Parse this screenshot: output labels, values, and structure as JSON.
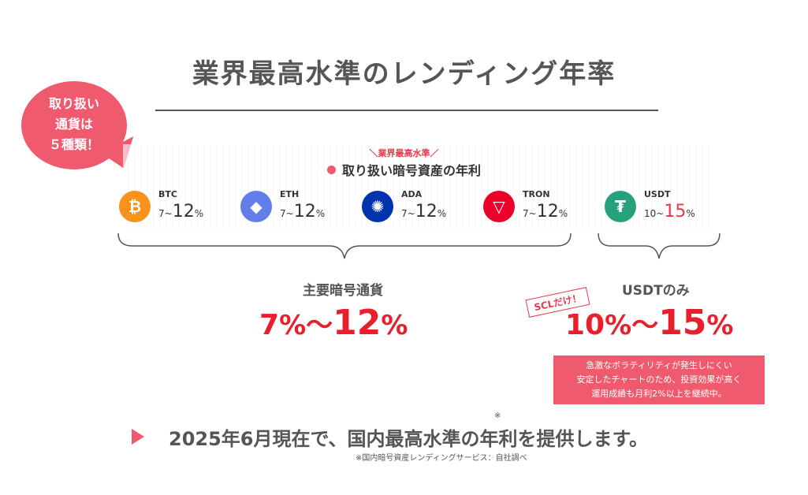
{
  "title": "業界最高水準のレンディング年率",
  "bubble": {
    "text": "取り扱い\n通貨は\n５種類！"
  },
  "kicker": "＼業界最高水準／",
  "subhead": "取り扱い暗号資産の年利",
  "coins": [
    {
      "name": "BTC",
      "prefix": "7~",
      "value": "12",
      "suffix": "%",
      "color": "#f7931a",
      "icon": "bitcoin-icon",
      "glyph": "₿"
    },
    {
      "name": "ETH",
      "prefix": "7~",
      "value": "12",
      "suffix": "%",
      "color": "#627eea",
      "icon": "ethereum-icon",
      "glyph": "◆"
    },
    {
      "name": "ADA",
      "prefix": "7~",
      "value": "12",
      "suffix": "%",
      "color": "#0033ad",
      "icon": "cardano-icon",
      "glyph": "✺"
    },
    {
      "name": "TRON",
      "prefix": "7~",
      "value": "12",
      "suffix": "%",
      "color": "#eb0029",
      "icon": "tron-icon",
      "glyph": "▽"
    },
    {
      "name": "USDT",
      "prefix": "10~",
      "value": "15",
      "suffix": "%",
      "color": "#26a17b",
      "icon": "tether-icon",
      "glyph": "₮"
    }
  ],
  "main_group": {
    "label": "主要暗号通貨",
    "rate_low": "7",
    "pct1": "%",
    "tilde": "〜",
    "rate_high": "12",
    "pct2": "%"
  },
  "usdt_group": {
    "label": "USDTのみ",
    "tag": "SCLだけ！",
    "rate_low": "10",
    "pct1": "%",
    "tilde": "〜",
    "rate_high": "15",
    "pct2": "%",
    "note": [
      "急激なボラティリティが発生しにくい",
      "安定したチャートのため、投資効果が高く",
      "運用成績も月利2%以上を継続中。"
    ]
  },
  "statement": "2025年6月現在で、国内最高水準の年利を提供します。",
  "asterisk": "※",
  "footnote": "※国内暗号資産レンディングサービス：自社調べ",
  "accent_color": "#f05a6e"
}
